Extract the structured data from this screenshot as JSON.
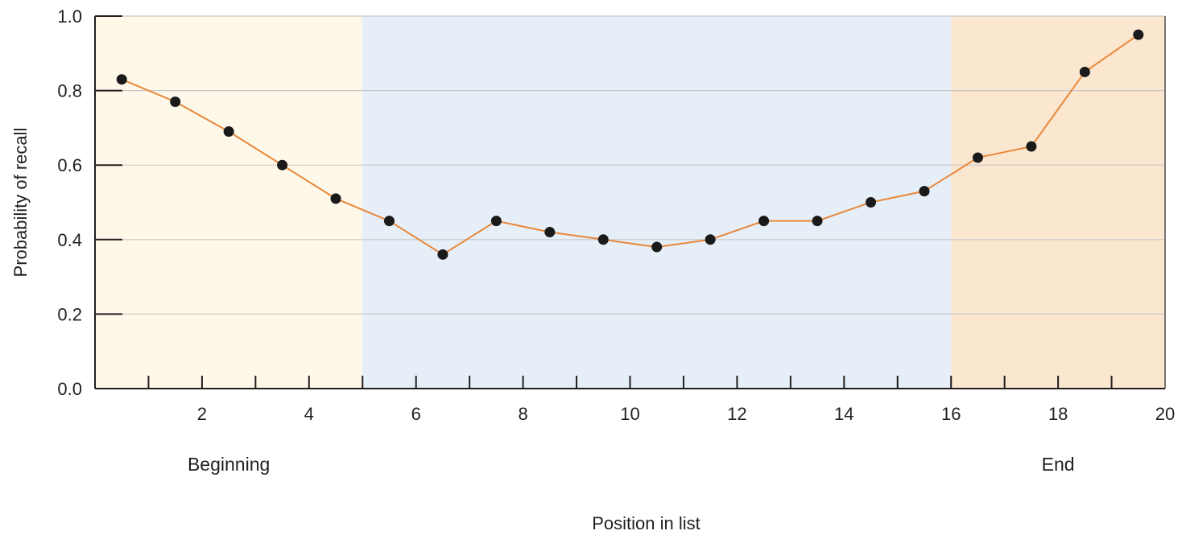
{
  "chart_data": {
    "type": "line",
    "title": "",
    "xlabel": "Position in list",
    "ylabel": "Probability of recall",
    "xlim": [
      0,
      20
    ],
    "ylim": [
      0,
      1.0
    ],
    "x_ticks": [
      2,
      4,
      6,
      8,
      10,
      12,
      14,
      16,
      18,
      20
    ],
    "y_ticks": [
      0.0,
      0.2,
      0.4,
      0.6,
      0.8,
      1.0
    ],
    "y_tick_labels": [
      "0.0",
      "0.2",
      "0.4",
      "0.6",
      "0.8",
      "1.0"
    ],
    "grid": "horizontal",
    "series": [
      {
        "color": "#e8883a",
        "x": [
          0.5,
          1.5,
          2.5,
          3.5,
          4.5,
          5.5,
          6.5,
          7.5,
          8.5,
          9.5,
          10.5,
          11.5,
          12.5,
          13.5,
          14.5,
          15.5,
          16.5,
          17.5,
          18.5,
          19.5
        ],
        "y": [
          0.83,
          0.77,
          0.69,
          0.6,
          0.51,
          0.45,
          0.36,
          0.45,
          0.42,
          0.4,
          0.38,
          0.4,
          0.45,
          0.45,
          0.5,
          0.53,
          0.62,
          0.65,
          0.85,
          0.95
        ]
      }
    ],
    "regions": [
      {
        "x_start": 0,
        "x_end": 5,
        "color": "#fef8e9",
        "label": "Beginning"
      },
      {
        "x_start": 5,
        "x_end": 16,
        "color": "#e6eef8",
        "label": ""
      },
      {
        "x_start": 16,
        "x_end": 20,
        "color": "#fbe6cf",
        "label": "End"
      }
    ],
    "colors": {
      "line": "#e8883a",
      "point": "#1a1a1a",
      "axis": "#231f20",
      "grid": "#c8c8c8"
    }
  }
}
